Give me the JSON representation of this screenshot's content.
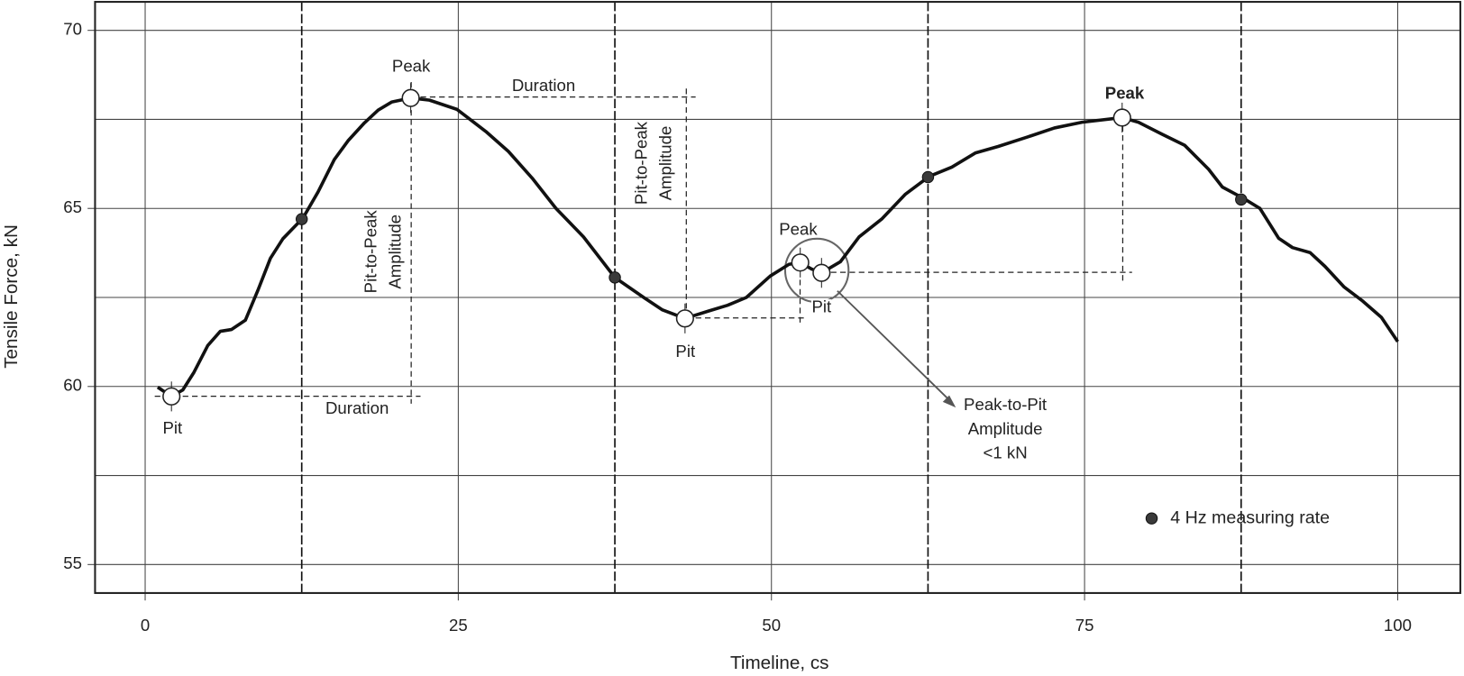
{
  "chart_data": {
    "type": "line",
    "xlabel": "Timeline, cs",
    "ylabel": "Tensile Force, kN",
    "xlim": [
      -4,
      105
    ],
    "ylim": [
      54.2,
      70.8
    ],
    "xticks": [
      0,
      25,
      50,
      75,
      100
    ],
    "yticks": [
      55,
      60,
      65,
      70
    ],
    "xminor": [
      12.5,
      37.5,
      62.5,
      87.5
    ],
    "yminor": [
      57.5,
      62.5,
      67.5
    ],
    "grid": true,
    "series": [
      {
        "color": "#111111",
        "x": [
          1.0,
          2.1,
          3.0,
          3.9,
          5,
          6,
          6.9,
          8,
          9,
          10,
          11,
          12.6,
          13.8,
          15.1,
          16.2,
          17.5,
          18.6,
          19.7,
          21.2,
          22.7,
          24.9,
          27.2,
          29,
          30.9,
          32.8,
          35,
          37.5,
          39.8,
          41.3,
          43.1,
          45,
          46.5,
          48,
          49.9,
          51.4,
          52.3,
          53.2,
          54,
          55.5,
          57,
          58.8,
          60.7,
          62.6,
          64.4,
          66.3,
          68.1,
          70.4,
          72.6,
          74.8,
          78,
          79.3,
          81.2,
          83,
          84.9,
          86,
          87.7,
          89,
          90.5,
          91.6,
          93,
          94.2,
          95.7,
          97.2,
          98.7,
          100
        ],
        "values": [
          59.98,
          59.72,
          59.9,
          60.4,
          61.15,
          61.55,
          61.6,
          61.86,
          62.7,
          63.6,
          64.15,
          64.73,
          65.46,
          66.37,
          66.9,
          67.4,
          67.76,
          67.99,
          68.1,
          68.04,
          67.78,
          67.16,
          66.6,
          65.85,
          65.0,
          64.2,
          63.06,
          62.5,
          62.15,
          61.91,
          62.12,
          62.28,
          62.5,
          63.1,
          63.43,
          63.48,
          63.3,
          63.19,
          63.5,
          64.2,
          64.7,
          65.4,
          65.9,
          66.16,
          66.56,
          66.74,
          67.0,
          67.26,
          67.42,
          67.55,
          67.42,
          67.08,
          66.77,
          66.1,
          65.6,
          65.28,
          65.0,
          64.16,
          63.9,
          63.76,
          63.37,
          62.8,
          62.4,
          61.94,
          61.26
        ]
      }
    ],
    "measurements": {
      "name": "4 Hz measuring rate",
      "color": "#3a3a3a",
      "x": [
        12.5,
        37.5,
        62.5,
        87.5
      ],
      "values": [
        64.7,
        63.06,
        65.88,
        65.25
      ]
    },
    "extrema": {
      "x": [
        2.1,
        21.2,
        43.1,
        52.3,
        54,
        78
      ],
      "values": [
        59.72,
        68.1,
        61.91,
        63.48,
        63.19,
        67.55
      ]
    },
    "annotations": [
      {
        "lines": [
          "Peak"
        ]
      },
      {
        "lines": [
          "Duration"
        ]
      },
      {
        "lines": [
          "Pit-to-Peak",
          "Amplitude"
        ]
      },
      {
        "lines": [
          "Pit-to-Peak",
          "Amplitude"
        ]
      },
      {
        "lines": [
          "Pit"
        ]
      },
      {
        "lines": [
          "Duration"
        ]
      },
      {
        "lines": [
          "Pit"
        ]
      },
      {
        "lines": [
          "Peak"
        ]
      },
      {
        "lines": [
          "Pit"
        ]
      },
      {
        "lines": [
          "Peak-to-Pit",
          "Amplitude",
          "<1 kN"
        ]
      },
      {
        "lines": [
          "Peak"
        ]
      }
    ]
  }
}
